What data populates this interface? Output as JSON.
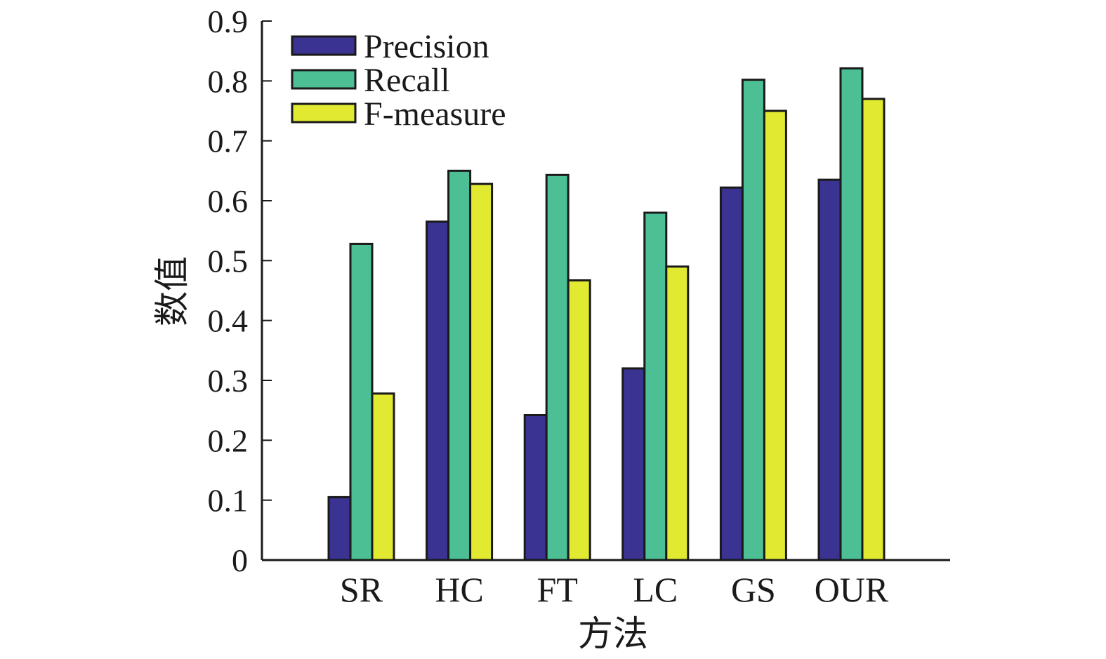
{
  "chart_data": {
    "type": "bar",
    "title": "",
    "xlabel": "方法",
    "ylabel": "数值",
    "categories": [
      "SR",
      "HC",
      "FT",
      "LC",
      "GS",
      "OUR"
    ],
    "series": [
      {
        "name": "Precision",
        "color": "#3a3391",
        "values": [
          0.105,
          0.565,
          0.242,
          0.32,
          0.622,
          0.635
        ]
      },
      {
        "name": "Recall",
        "color": "#4cc094",
        "values": [
          0.528,
          0.65,
          0.643,
          0.58,
          0.802,
          0.821
        ]
      },
      {
        "name": "F-measure",
        "color": "#e1ea31",
        "values": [
          0.278,
          0.628,
          0.467,
          0.49,
          0.75,
          0.77
        ]
      }
    ],
    "ylim": [
      0,
      0.9
    ],
    "yticks": [
      0,
      0.1,
      0.2,
      0.3,
      0.4,
      0.5,
      0.6,
      0.7,
      0.8,
      0.9
    ],
    "ytick_labels": [
      "0",
      "0.1",
      "0.2",
      "0.3",
      "0.4",
      "0.5",
      "0.6",
      "0.7",
      "0.8",
      "0.9"
    ],
    "grid": false,
    "legend_position": "top-left"
  }
}
